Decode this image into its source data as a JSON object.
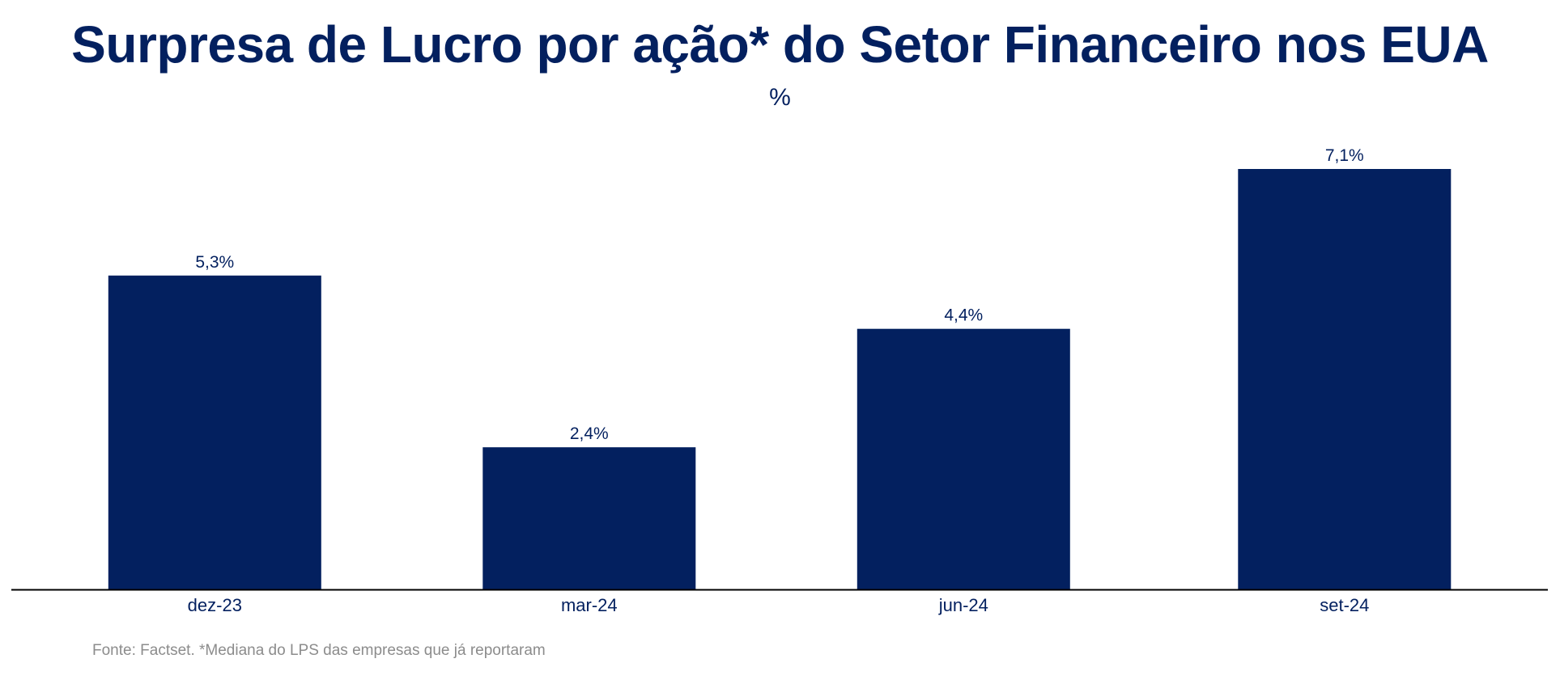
{
  "chart_data": {
    "type": "bar",
    "title": "Surpresa de Lucro por ação* do Setor Financeiro nos EUA",
    "subtitle": "%",
    "xlabel": "",
    "ylabel": "",
    "categories": [
      "dez-23",
      "mar-24",
      "jun-24",
      "set-24"
    ],
    "values": [
      5.3,
      2.4,
      4.4,
      7.1
    ],
    "data_labels": [
      "5,3%",
      "2,4%",
      "4,4%",
      "7,1%"
    ],
    "ylim": [
      0,
      8
    ],
    "grid": false,
    "legend": "none",
    "bar_color": "#03205f",
    "text_color": "#03205f",
    "baseline_color": "#000000"
  },
  "source": "Fonte: Factset. *Mediana do LPS das empresas que já reportaram"
}
